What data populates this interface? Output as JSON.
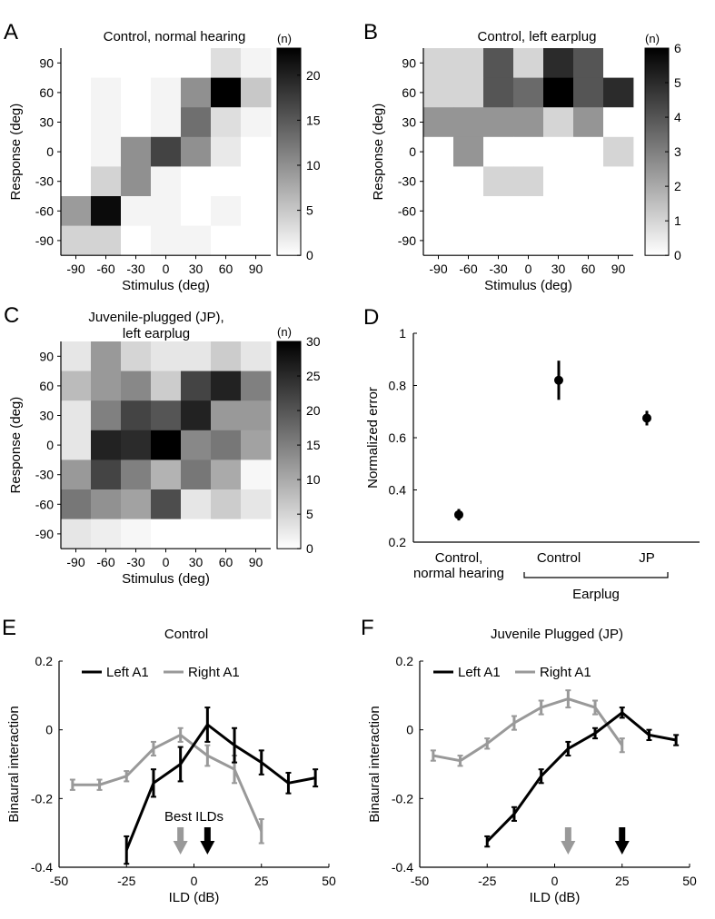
{
  "chart_data": [
    {
      "panel": "A",
      "type": "heatmap",
      "title": "Control, normal hearing",
      "xlabel": "Stimulus (deg)",
      "ylabel": "Response (deg)",
      "x": [
        "-90",
        "-60",
        "-30",
        "0",
        "30",
        "60",
        "90"
      ],
      "y": [
        "90",
        "60",
        "30",
        "0",
        "-30",
        "-60",
        "-90"
      ],
      "colorbar": {
        "label": "(n)",
        "min": 0,
        "max": 23,
        "ticks": [
          0,
          5,
          10,
          15,
          20
        ]
      },
      "values": [
        [
          0,
          0,
          0,
          0,
          0,
          3,
          1
        ],
        [
          0,
          1,
          0,
          1,
          10,
          23,
          5
        ],
        [
          0,
          1,
          0,
          1,
          13,
          3,
          1
        ],
        [
          0,
          1,
          10,
          17,
          10,
          2,
          0
        ],
        [
          0,
          4,
          10,
          1,
          0,
          0,
          0
        ],
        [
          9,
          22,
          1,
          1,
          0,
          1,
          0
        ],
        [
          4,
          4,
          0,
          1,
          1,
          0,
          0
        ]
      ]
    },
    {
      "panel": "B",
      "type": "heatmap",
      "title": "Control, left earplug",
      "xlabel": "Stimulus (deg)",
      "ylabel": "Response (deg)",
      "x": [
        "-90",
        "-60",
        "-30",
        "0",
        "30",
        "60",
        "90"
      ],
      "y": [
        "90",
        "60",
        "30",
        "0",
        "-30",
        "-60",
        "-90"
      ],
      "colorbar": {
        "label": "(n)",
        "min": 0,
        "max": 6,
        "ticks": [
          0,
          1,
          2,
          3,
          4,
          5,
          6
        ]
      },
      "values": [
        [
          1,
          1,
          4,
          1,
          5,
          4,
          0
        ],
        [
          1,
          1,
          4,
          3.5,
          6,
          4,
          5
        ],
        [
          2.5,
          2.5,
          2.5,
          2.5,
          1,
          2.5,
          0
        ],
        [
          0,
          2.5,
          0,
          0,
          0,
          0,
          1
        ],
        [
          0,
          0,
          1,
          1,
          0,
          0,
          0
        ],
        [
          0,
          0,
          0,
          0,
          0,
          0,
          0
        ],
        [
          0,
          0,
          0,
          0,
          0,
          0,
          0
        ]
      ]
    },
    {
      "panel": "C",
      "type": "heatmap",
      "title": "Juvenile-plugged (JP), left earplug",
      "title_lines": [
        "Juvenile-plugged (JP),",
        "left earplug"
      ],
      "xlabel": "Stimulus (deg)",
      "ylabel": "Response (deg)",
      "x": [
        "-90",
        "-60",
        "-30",
        "0",
        "30",
        "60",
        "90"
      ],
      "y": [
        "90",
        "60",
        "30",
        "0",
        "-30",
        "-60",
        "-90"
      ],
      "colorbar": {
        "label": "(n)",
        "min": 0,
        "max": 30,
        "ticks": [
          0,
          5,
          10,
          15,
          20,
          25,
          30
        ]
      },
      "values": [
        [
          3,
          12,
          5,
          3,
          3,
          6,
          3
        ],
        [
          8,
          12,
          14,
          6,
          22,
          26,
          15
        ],
        [
          3,
          15,
          22,
          20,
          26,
          12,
          12
        ],
        [
          3,
          26,
          25,
          30,
          14,
          16,
          11
        ],
        [
          12,
          22,
          15,
          9,
          16,
          10,
          1
        ],
        [
          16,
          13,
          11,
          21,
          3,
          6,
          3
        ],
        [
          3,
          2,
          1,
          0,
          0,
          0,
          0
        ]
      ]
    },
    {
      "panel": "D",
      "type": "scatter",
      "ylabel": "Normalized error",
      "categories": [
        "Control, normal hearing",
        "Control",
        "JP"
      ],
      "category_lines": [
        [
          "Control,",
          "normal hearing"
        ],
        [
          "Control"
        ],
        [
          "JP"
        ]
      ],
      "group_label": "Earplug",
      "values": [
        0.305,
        0.82,
        0.675
      ],
      "errors": [
        0.022,
        0.075,
        0.028
      ],
      "ylim": [
        0.2,
        1.0
      ],
      "yticks": [
        0.2,
        0.4,
        0.6,
        0.8,
        1
      ]
    },
    {
      "panel": "E",
      "type": "line",
      "title": "Control",
      "xlabel": "ILD (dB)",
      "ylabel": "Binaural interaction",
      "xlim": [
        -50,
        50
      ],
      "ylim": [
        -0.4,
        0.2
      ],
      "xticks": [
        -50,
        -25,
        0,
        25,
        50
      ],
      "yticks": [
        -0.4,
        -0.2,
        0,
        0.2
      ],
      "yticklabels": [
        "-0.4",
        "-0.2",
        "0",
        "0.2"
      ],
      "series": [
        {
          "name": "Left A1",
          "color": "#000000",
          "x": [
            -25,
            -15,
            -5,
            5,
            15,
            25,
            35,
            45
          ],
          "y": [
            -0.35,
            -0.155,
            -0.1,
            0.015,
            -0.045,
            -0.095,
            -0.155,
            -0.14
          ],
          "err": [
            0.04,
            0.04,
            0.05,
            0.05,
            0.05,
            0.035,
            0.03,
            0.025
          ]
        },
        {
          "name": "Right A1",
          "color": "#999999",
          "x": [
            -45,
            -35,
            -25,
            -15,
            -5,
            5,
            15,
            25
          ],
          "y": [
            -0.16,
            -0.16,
            -0.135,
            -0.055,
            -0.015,
            -0.075,
            -0.115,
            -0.295
          ],
          "err": [
            0.015,
            0.015,
            0.015,
            0.02,
            0.02,
            0.03,
            0.04,
            0.035
          ]
        }
      ],
      "annotation": "Best ILDs",
      "best_ild_arrows": [
        {
          "x": -5,
          "color": "#999999"
        },
        {
          "x": 5,
          "color": "#000000"
        }
      ]
    },
    {
      "panel": "F",
      "type": "line",
      "title": "Juvenile Plugged (JP)",
      "xlabel": "ILD (dB)",
      "ylabel": "Binaural interaction",
      "xlim": [
        -50,
        50
      ],
      "ylim": [
        -0.4,
        0.2
      ],
      "xticks": [
        -50,
        -25,
        0,
        25,
        50
      ],
      "yticks": [
        -0.4,
        -0.2,
        0,
        0.2
      ],
      "yticklabels": [
        "-0.4",
        "-0.2",
        "0",
        "0.2"
      ],
      "series": [
        {
          "name": "Left A1",
          "color": "#000000",
          "x": [
            -25,
            -15,
            -5,
            5,
            15,
            25,
            35,
            45
          ],
          "y": [
            -0.325,
            -0.245,
            -0.135,
            -0.055,
            -0.01,
            0.05,
            -0.015,
            -0.03
          ],
          "err": [
            0.015,
            0.02,
            0.02,
            0.02,
            0.015,
            0.015,
            0.015,
            0.015
          ]
        },
        {
          "name": "Right A1",
          "color": "#999999",
          "x": [
            -45,
            -35,
            -25,
            -15,
            -5,
            5,
            15,
            25
          ],
          "y": [
            -0.075,
            -0.09,
            -0.04,
            0.02,
            0.065,
            0.09,
            0.065,
            -0.045
          ],
          "err": [
            0.015,
            0.015,
            0.015,
            0.02,
            0.02,
            0.025,
            0.02,
            0.02
          ]
        }
      ],
      "best_ild_arrows": [
        {
          "x": 5,
          "color": "#999999"
        },
        {
          "x": 25,
          "color": "#000000"
        }
      ]
    }
  ],
  "panel_labels": [
    "A",
    "B",
    "C",
    "D",
    "E",
    "F"
  ]
}
